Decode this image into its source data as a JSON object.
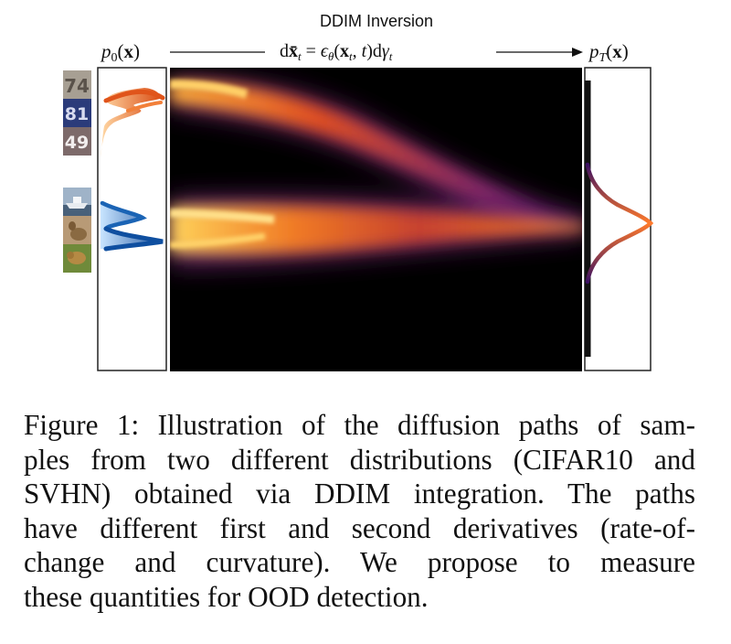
{
  "figure": {
    "header_title": "DDIM Inversion",
    "left_label": "p₀(x)",
    "equation": "dx̄ₜ = ϵ_θ(xₜ, t)dγₜ",
    "right_label": "p_T(x)",
    "thumbnails": [
      {
        "name": "svhn-digit-74-thumbnail",
        "text": "74"
      },
      {
        "name": "svhn-digit-81-thumbnail",
        "text": "81"
      },
      {
        "name": "svhn-digit-49-thumbnail",
        "text": "49"
      },
      {
        "name": "cifar-ship-thumbnail",
        "text": ""
      },
      {
        "name": "cifar-deer-thumbnail",
        "text": ""
      },
      {
        "name": "cifar-animal-thumbnail",
        "text": ""
      }
    ],
    "colors": {
      "background": "#000000",
      "path_hot": "#ffb13b",
      "path_mid": "#e2501f",
      "path_cool": "#5b2180",
      "svhn_density": "#ef7a2a",
      "cifar_density": "#1f6fc0"
    }
  },
  "caption": {
    "lines": [
      "Figure 1: Illustration of the diffusion paths of sam-",
      "ples from two different distributions (CIFAR10 and",
      "SVHN) obtained via DDIM integration. The paths",
      "have different first and second derivatives (rate-of-",
      "change and curvature).  We propose to measure",
      "these quantities for OOD detection."
    ]
  }
}
